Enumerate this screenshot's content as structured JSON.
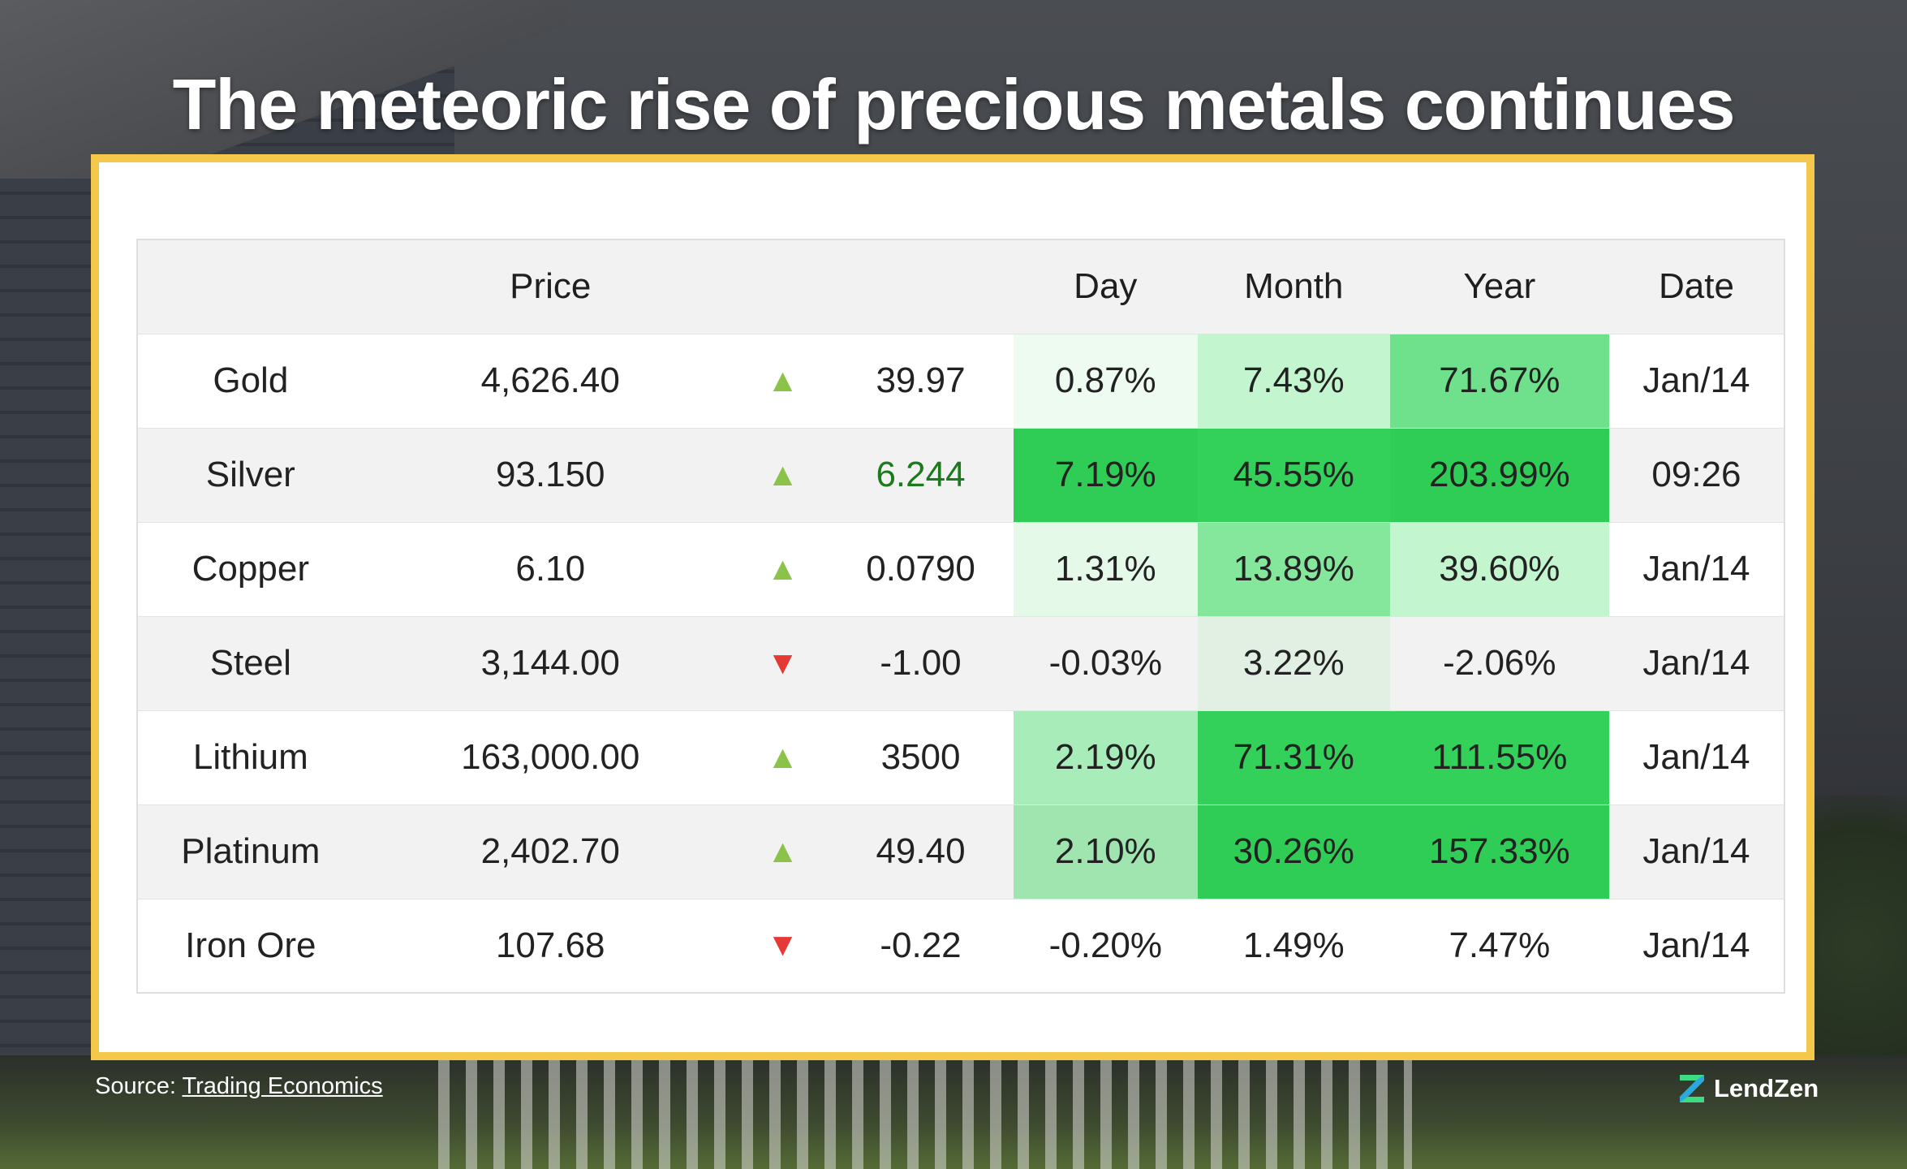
{
  "title": "The meteoric rise of precious metals continues",
  "colors": {
    "frame": "#f4c84a",
    "arrow_up": "#8bc34a",
    "arrow_down": "#e53935",
    "heat_scale": [
      "#eefbf0",
      "#e2f0e4",
      "#d4f7dc",
      "#c3f5ce",
      "#a8ecb9",
      "#a0e4b0",
      "#84e79c",
      "#6fe08c",
      "#2fcc56",
      "#33d05a"
    ]
  },
  "chart_data": {
    "type": "table",
    "columns": [
      "",
      "Price",
      "",
      "",
      "Day",
      "Month",
      "Year",
      "Date"
    ],
    "rows": [
      {
        "name": "Gold",
        "price": "4,626.40",
        "direction": "up",
        "change": "39.97",
        "day": "0.87%",
        "month": "7.43%",
        "year": "71.67%",
        "date": "Jan/14"
      },
      {
        "name": "Silver",
        "price": "93.150",
        "direction": "up",
        "change": "6.244",
        "day": "7.19%",
        "month": "45.55%",
        "year": "203.99%",
        "date": "09:26"
      },
      {
        "name": "Copper",
        "price": "6.10",
        "direction": "up",
        "change": "0.0790",
        "day": "1.31%",
        "month": "13.89%",
        "year": "39.60%",
        "date": "Jan/14"
      },
      {
        "name": "Steel",
        "price": "3,144.00",
        "direction": "down",
        "change": "-1.00",
        "day": "-0.03%",
        "month": "3.22%",
        "year": "-2.06%",
        "date": "Jan/14"
      },
      {
        "name": "Lithium",
        "price": "163,000.00",
        "direction": "up",
        "change": "3500",
        "day": "2.19%",
        "month": "71.31%",
        "year": "111.55%",
        "date": "Jan/14"
      },
      {
        "name": "Platinum",
        "price": "2,402.70",
        "direction": "up",
        "change": "49.40",
        "day": "2.10%",
        "month": "30.26%",
        "year": "157.33%",
        "date": "Jan/14"
      },
      {
        "name": "Iron Ore",
        "price": "107.68",
        "direction": "down",
        "change": "-0.22",
        "day": "-0.20%",
        "month": "1.49%",
        "year": "7.47%",
        "date": "Jan/14"
      }
    ],
    "cell_fills": {
      "day": [
        "#eefbf0",
        "#2fcc56",
        "#e4f9e8",
        null,
        "#a8ecb9",
        "#a0e4b0",
        null
      ],
      "month": [
        "#c3f5ce",
        "#33d05a",
        "#84e79c",
        "#e2f0e4",
        "#33d05a",
        "#2fcc56",
        null
      ],
      "year": [
        "#6fe08c",
        "#2fcc56",
        "#c3f5ce",
        null,
        "#33d05a",
        "#2fcc56",
        null
      ]
    }
  },
  "footer": {
    "source_prefix": "Source: ",
    "source_link": "Trading Economics",
    "brand": "LendZen"
  }
}
